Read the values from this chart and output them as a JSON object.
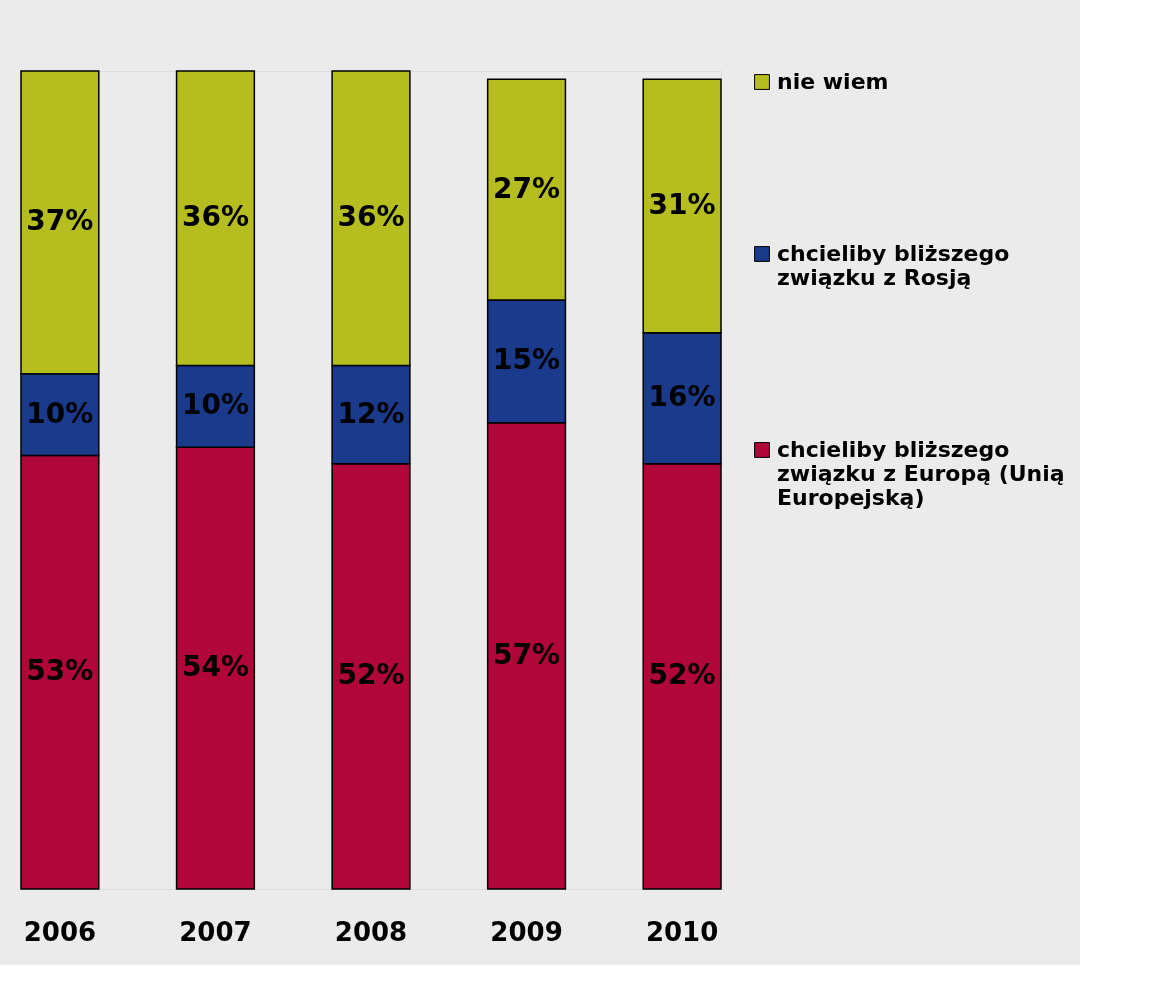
{
  "chart_data": {
    "type": "bar",
    "stacked": true,
    "legend": "right",
    "grid": false,
    "categories": [
      "2006",
      "2007",
      "2008",
      "2009",
      "2010"
    ],
    "series": [
      {
        "name": "chcieliby bliższego związku z Europą (Unią Europejską)",
        "color": "#b00638",
        "values": [
          53,
          54,
          52,
          57,
          52
        ],
        "value_labels": [
          "53%",
          "54%",
          "52%",
          "57%",
          "52%"
        ]
      },
      {
        "name": "chcieliby bliższego związku z Rosją",
        "color": "#1a3a8c",
        "values": [
          10,
          10,
          12,
          15,
          16
        ],
        "value_labels": [
          "10%",
          "10%",
          "12%",
          "15%",
          "16%"
        ]
      },
      {
        "name": "nie wiem",
        "color": "#b5be1e",
        "values": [
          37,
          36,
          36,
          27,
          31
        ],
        "value_labels": [
          "37%",
          "36%",
          "36%",
          "27%",
          "31%"
        ]
      }
    ]
  }
}
